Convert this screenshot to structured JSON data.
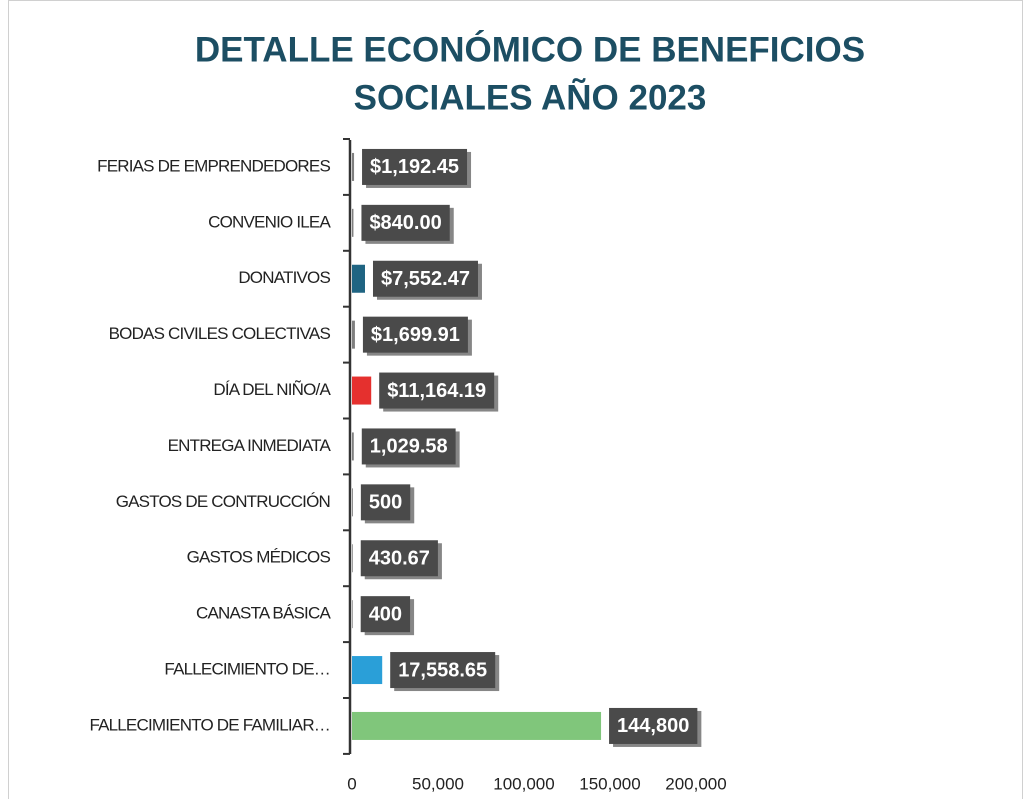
{
  "chart_data": {
    "type": "bar",
    "orientation": "horizontal",
    "title": [
      "DETALLE ECONÓMICO DE BENEFICIOS",
      "SOCIALES AÑO 2023"
    ],
    "categories": [
      "FERIAS DE EMPRENDEDORES",
      "CONVENIO ILEA",
      "DONATIVOS",
      "BODAS CIVILES COLECTIVAS",
      "DÍA DEL NIÑO/A",
      "ENTREGA INMEDIATA",
      "GASTOS DE CONTRUCCIÓN",
      "GASTOS MÉDICOS",
      "CANASTA BÁSICA",
      "FALLECIMIENTO DE…",
      "FALLECIMIENTO DE FAMILIAR…"
    ],
    "values": [
      1192.45,
      840,
      7552.47,
      1699.91,
      11164.19,
      1029.58,
      500,
      430.67,
      400,
      17558.65,
      144800
    ],
    "value_labels": [
      "$1,192.45",
      "$840.00",
      "$7,552.47",
      "$1,699.91",
      "$11,164.19",
      "1,029.58",
      "500",
      "430.67",
      "400",
      "17,558.65",
      "144,800"
    ],
    "colors": [
      "#7f7f7f",
      "#7f7f7f",
      "#1f6482",
      "#7f7f7f",
      "#e5302e",
      "#7f7f7f",
      "#7f7f7f",
      "#7f7f7f",
      "#7f7f7f",
      "#2a9fd8",
      "#80c67b"
    ],
    "xlim": [
      0,
      200000
    ],
    "xticks": [
      0,
      {
        "value": 50000,
        "label": "50,000"
      },
      {
        "value": 100000,
        "label": "100,000"
      },
      {
        "value": 150000,
        "label": "150,000"
      },
      {
        "value": 200000,
        "label": "200,000"
      }
    ]
  }
}
